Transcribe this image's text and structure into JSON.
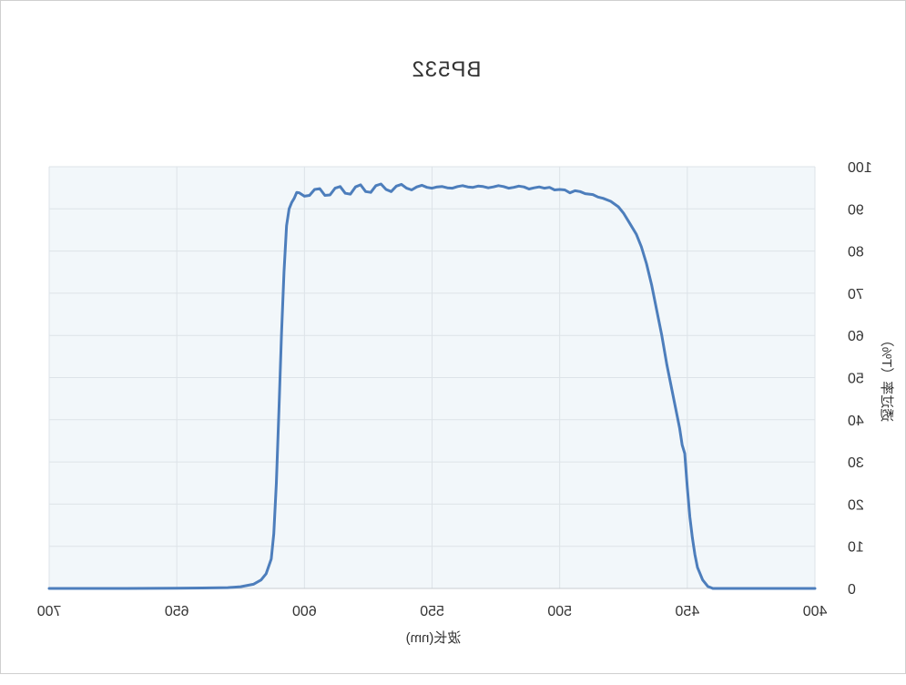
{
  "chart_data": {
    "type": "line",
    "title": "BP532",
    "xlabel": "波长(nm)",
    "ylabel": "透过率（T%）",
    "xlim": [
      400,
      700
    ],
    "ylim": [
      0,
      100
    ],
    "x_ticks": [
      400,
      450,
      500,
      550,
      600,
      650,
      700
    ],
    "y_ticks": [
      0,
      10,
      20,
      30,
      40,
      50,
      60,
      70,
      80,
      90,
      100
    ],
    "grid": true,
    "background_color": "#f2f7fa",
    "line_color": "#4d7ebc",
    "series": [
      {
        "x": [
          400,
          420,
          440,
          442,
          444,
          446,
          447,
          448,
          449,
          450,
          451,
          452,
          453,
          455,
          458,
          460,
          462,
          464,
          466,
          468,
          470,
          472,
          473,
          475,
          477,
          480,
          483,
          485,
          487,
          490,
          492,
          494,
          496,
          498,
          500,
          502,
          504,
          506,
          508,
          510,
          512,
          514,
          516,
          518,
          520,
          522,
          524,
          526,
          528,
          530,
          532,
          534,
          536,
          538,
          540,
          542,
          544,
          546,
          548,
          550,
          552,
          554,
          556,
          558,
          560,
          562,
          564,
          566,
          568,
          570,
          572,
          574,
          576,
          578,
          580,
          582,
          584,
          586,
          588,
          590,
          592,
          594,
          596,
          598,
          600,
          602,
          603,
          604,
          605,
          606,
          607,
          608,
          609,
          610,
          611,
          612,
          613,
          615,
          617,
          620,
          625,
          630,
          640,
          650,
          670,
          700
        ],
        "y": [
          0,
          0,
          0,
          0.5,
          2,
          5,
          8,
          12,
          17,
          24,
          32,
          34,
          38,
          44,
          53,
          60,
          66,
          72,
          77,
          81,
          84,
          86,
          87,
          89,
          90.5,
          91.8,
          92.5,
          92.8,
          93.4,
          93.6,
          94.1,
          94.3,
          93.8,
          94.5,
          94.6,
          94.5,
          95.1,
          94.9,
          95.2,
          95.0,
          94.7,
          95.2,
          95.4,
          95.1,
          94.9,
          95.3,
          95.5,
          95.2,
          95.0,
          95.3,
          95.4,
          95.1,
          95.2,
          95.5,
          95.3,
          94.9,
          95.0,
          95.3,
          95.2,
          94.9,
          95.1,
          95.6,
          95.2,
          94.5,
          94.9,
          95.8,
          95.4,
          94.1,
          94.6,
          95.9,
          95.5,
          93.9,
          94.1,
          95.7,
          95.2,
          93.5,
          93.7,
          95.3,
          94.9,
          93.3,
          93.2,
          94.8,
          94.6,
          93.2,
          93.0,
          93.8,
          93.9,
          92.5,
          91.5,
          90,
          86,
          75,
          60,
          42,
          25,
          13,
          7,
          3.5,
          2,
          1,
          0.4,
          0.2,
          0.1,
          0.05,
          0,
          0
        ]
      }
    ]
  }
}
